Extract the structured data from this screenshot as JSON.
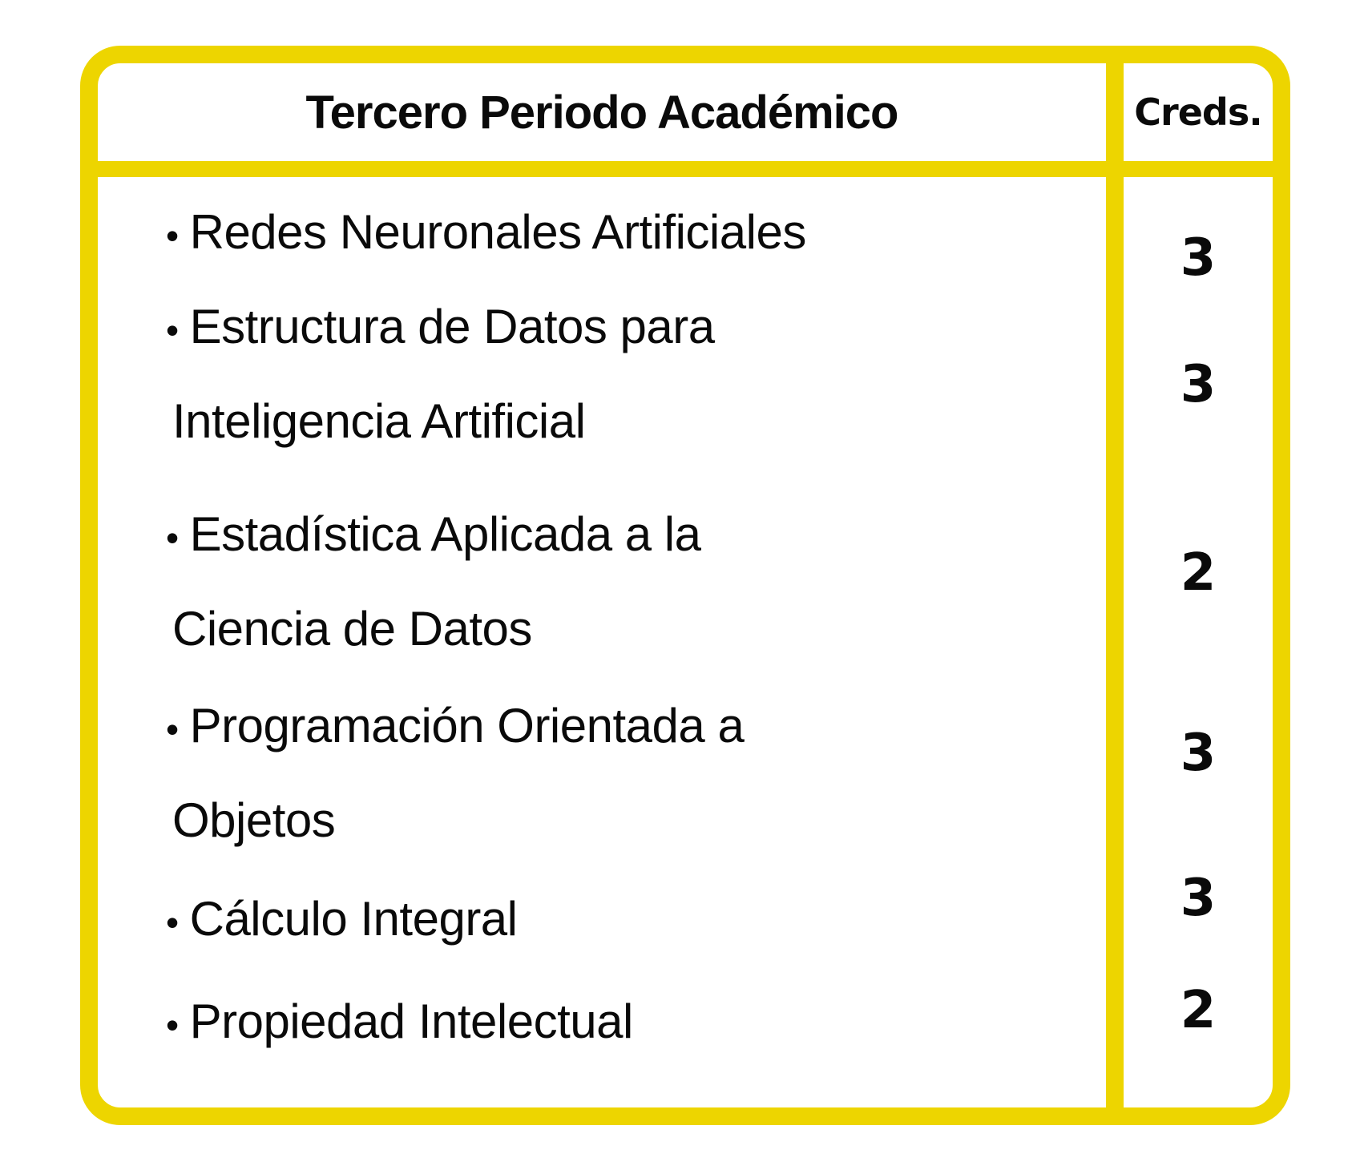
{
  "table": {
    "header": {
      "title": "Tercero Periodo Académico",
      "credits_label": "Creds."
    },
    "rows": [
      {
        "bullet": "•",
        "lines": [
          "Redes Neuronales Artificiales"
        ],
        "credits": "3"
      },
      {
        "bullet": "•",
        "lines": [
          "Estructura de Datos para",
          "Inteligencia Artificial"
        ],
        "credits": "3"
      },
      {
        "bullet": "•",
        "lines": [
          "Estadística Aplicada a la",
          "Ciencia de Datos"
        ],
        "credits": "2"
      },
      {
        "bullet": "•",
        "lines": [
          "Programación Orientada a",
          "Objetos"
        ],
        "credits": "3"
      },
      {
        "bullet": "•",
        "lines": [
          "Cálculo Integral"
        ],
        "credits": "3"
      },
      {
        "bullet": "•",
        "lines": [
          "Propiedad Intelectual"
        ],
        "credits": "2"
      }
    ],
    "colors": {
      "accent_yellow": "#edd500",
      "text_black": "#0a0a0a",
      "background": "#ffffff"
    }
  }
}
